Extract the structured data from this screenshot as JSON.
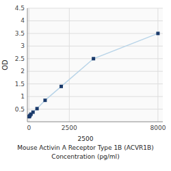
{
  "chart_data": {
    "type": "line",
    "xlabel": [
      "2500",
      "Mouse Activin A Receptor Type 1B (ACVR1B)",
      "Concentration (pg/ml)"
    ],
    "ylabel": "OD",
    "x": [
      15.625,
      31.25,
      62.5,
      125,
      250,
      500,
      1000,
      2000,
      4000,
      8000
    ],
    "series": [
      {
        "values": [
          0.2,
          0.22,
          0.25,
          0.3,
          0.38,
          0.52,
          0.85,
          1.4,
          2.5,
          3.5
        ],
        "color": "#1a3a6b",
        "marker": "square",
        "line_style": "solid"
      }
    ],
    "color": "#b8d4e8",
    "xlim": [
      -100,
      8300
    ],
    "ylim": [
      0,
      4.5
    ],
    "xticks": [
      0,
      2500,
      8000
    ],
    "yticks": [
      0.5,
      1,
      1.5,
      2,
      2.5,
      3,
      3.5,
      4,
      4.5
    ],
    "grid": true
  }
}
